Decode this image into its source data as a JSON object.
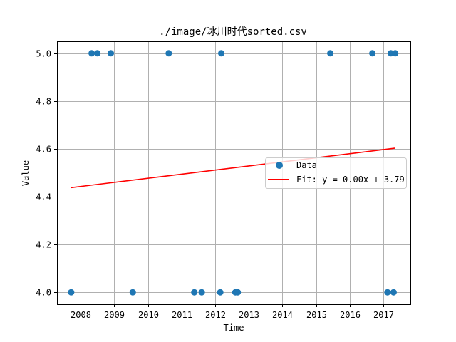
{
  "chart_data": {
    "type": "scatter",
    "title": "./image/冰川时代sorted.csv",
    "xlabel": "Time",
    "ylabel": "Value",
    "xlim": [
      2007.3,
      2017.8
    ],
    "ylim": [
      3.95,
      5.05
    ],
    "xticks": [
      2008,
      2009,
      2010,
      2011,
      2012,
      2013,
      2014,
      2015,
      2016,
      2017
    ],
    "yticks": [
      4.0,
      4.2,
      4.4,
      4.6,
      4.8,
      5.0
    ],
    "ytick_labels": [
      "4.0",
      "4.2",
      "4.4",
      "4.6",
      "4.8",
      "5.0"
    ],
    "grid": true,
    "legend_position": "center-right",
    "series": [
      {
        "name": "Data",
        "kind": "scatter",
        "color": "#1f77b4",
        "x": [
          2007.72,
          2008.33,
          2008.5,
          2008.9,
          2009.55,
          2010.62,
          2011.38,
          2011.6,
          2012.15,
          2012.18,
          2012.6,
          2012.67,
          2015.42,
          2016.67,
          2017.12,
          2017.22,
          2017.3,
          2017.35
        ],
        "y": [
          4.0,
          5.0,
          5.0,
          5.0,
          4.0,
          5.0,
          4.0,
          4.0,
          4.0,
          5.0,
          4.0,
          4.0,
          5.0,
          5.0,
          4.0,
          5.0,
          4.0,
          5.0
        ]
      },
      {
        "name": "Fit: y = 0.00x + 3.79",
        "kind": "line",
        "color": "#ff0000",
        "x": [
          2007.72,
          2017.35
        ],
        "y": [
          4.438,
          4.603
        ]
      }
    ]
  }
}
